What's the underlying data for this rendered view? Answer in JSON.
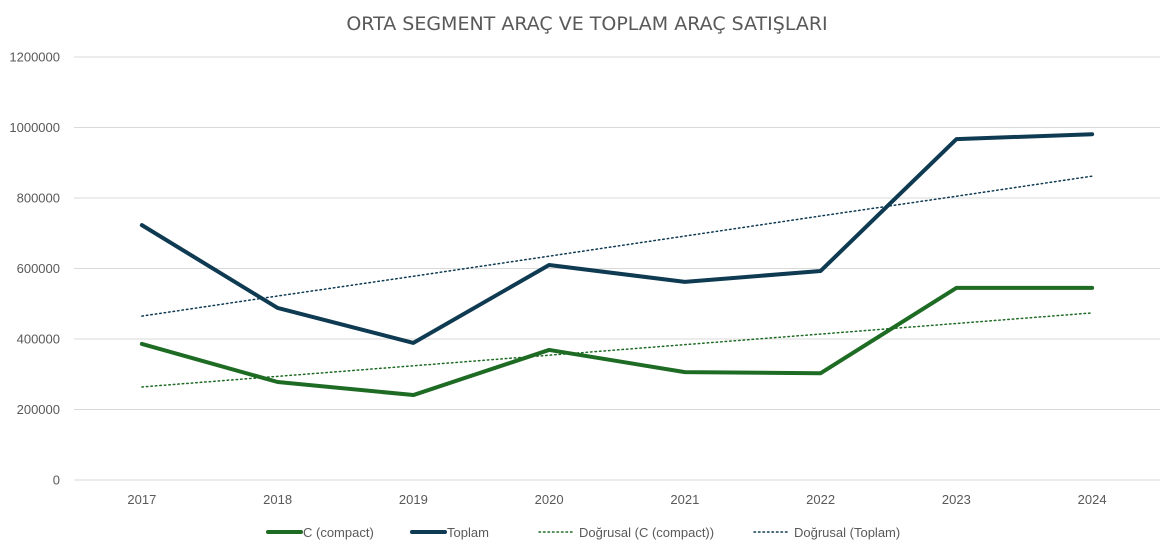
{
  "chart_data": {
    "type": "line",
    "title": "ORTA SEGMENT ARAÇ VE TOPLAM ARAÇ SATIŞLARI",
    "xlabel": "",
    "ylabel": "",
    "categories": [
      "2017",
      "2018",
      "2019",
      "2020",
      "2021",
      "2022",
      "2023",
      "2024"
    ],
    "ylim": [
      0,
      1200000
    ],
    "yticks": [
      0,
      200000,
      400000,
      600000,
      800000,
      1000000,
      1200000
    ],
    "ytick_labels": [
      "0",
      "200000",
      "400000",
      "600000",
      "800000",
      "1000000",
      "1200000"
    ],
    "grid": true,
    "legend_position": "bottom",
    "series": [
      {
        "name": "C (compact)",
        "color": "#1e6b24",
        "style": "solid",
        "values": [
          386000,
          278000,
          241000,
          369000,
          306000,
          303000,
          545000,
          545000
        ]
      },
      {
        "name": "Toplam",
        "color": "#0e3a52",
        "style": "solid",
        "values": [
          723000,
          488000,
          389000,
          610000,
          562000,
          593000,
          967000,
          981000
        ]
      }
    ],
    "trendlines": [
      {
        "name": "Doğrusal (C (compact))",
        "color": "#1e6b24",
        "style": "dotted",
        "values": [
          264000,
          294000,
          324000,
          354000,
          384000,
          414000,
          444000,
          474000
        ]
      },
      {
        "name": "Doğrusal (Toplam)",
        "color": "#0e3a52",
        "style": "dotted",
        "values": [
          465000,
          522000,
          578000,
          635000,
          692000,
          749000,
          805000,
          862000
        ]
      }
    ]
  }
}
